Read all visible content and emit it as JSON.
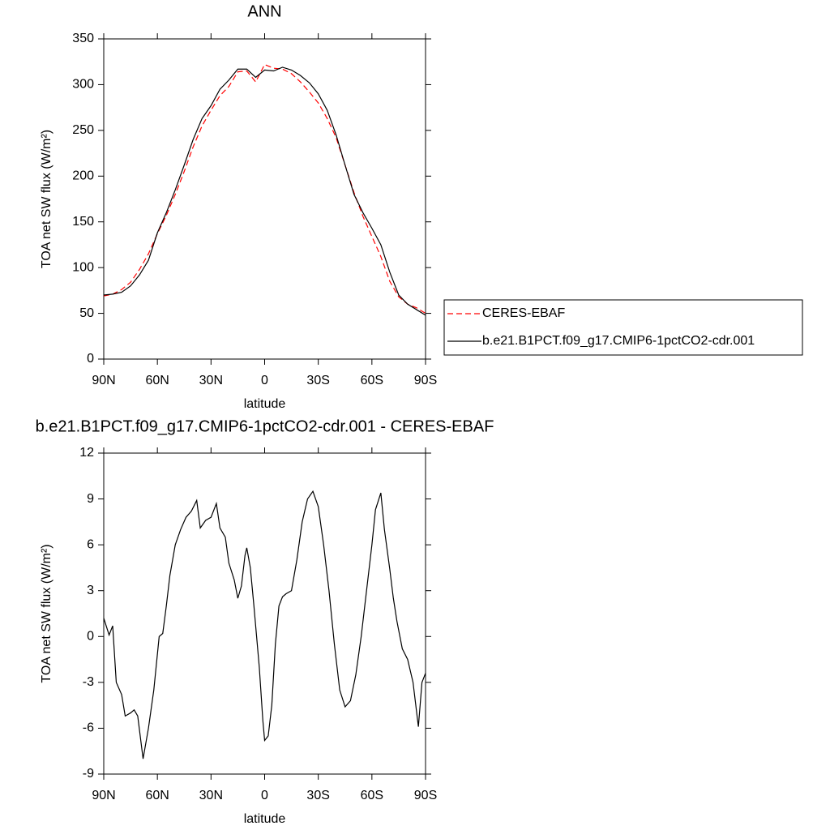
{
  "chart_data": [
    {
      "type": "line",
      "title": "ANN",
      "x": [
        90,
        85,
        80,
        75,
        70,
        65,
        60,
        55,
        50,
        45,
        40,
        35,
        30,
        25,
        20,
        15,
        10,
        5,
        0,
        -5,
        -10,
        -15,
        -20,
        -25,
        -30,
        -35,
        -40,
        -45,
        -50,
        -55,
        -60,
        -65,
        -70,
        -75,
        -80,
        -85,
        -90
      ],
      "series": [
        {
          "name": "CERES-EBAF",
          "color": "#ff0000",
          "dashed": true,
          "values": [
            69,
            71,
            76,
            84,
            98,
            115,
            137,
            157,
            180,
            205,
            232,
            255,
            272,
            288,
            298,
            314,
            315,
            303,
            322,
            318,
            317,
            312,
            303,
            292,
            280,
            263,
            242,
            212,
            182,
            156,
            134,
            112,
            85,
            68,
            60,
            56,
            50
          ]
        },
        {
          "name": "b.e21.B1PCT.f09_g17.CMIP6-1pctCO2-cdr.001",
          "color": "#000000",
          "dashed": false,
          "values": [
            70,
            71,
            73,
            80,
            92,
            108,
            138,
            160,
            185,
            212,
            240,
            263,
            277,
            295,
            305,
            317,
            317,
            308,
            316,
            315,
            319,
            316,
            310,
            302,
            290,
            272,
            245,
            212,
            180,
            160,
            143,
            125,
            95,
            70,
            60,
            54,
            48
          ]
        }
      ],
      "xlim": [
        90,
        -90
      ],
      "xticks": [
        {
          "value": 90,
          "label": "90N"
        },
        {
          "value": 60,
          "label": "60N"
        },
        {
          "value": 30,
          "label": "30N"
        },
        0,
        {
          "value": -30,
          "label": "30S"
        },
        {
          "value": -60,
          "label": "60S"
        },
        {
          "value": -90,
          "label": "90S"
        }
      ],
      "ylim": [
        0,
        350
      ],
      "yticks": [
        0,
        50,
        100,
        150,
        200,
        250,
        300,
        350
      ],
      "x_label": "latitude",
      "y_label": "TOA net SW flux (W/m²)",
      "legend": "right"
    },
    {
      "type": "line",
      "title": "b.e21.B1PCT.f09_g17.CMIP6-1pctCO2-cdr.001 - CERES-EBAF",
      "x": [
        90,
        87,
        85,
        83,
        80,
        78,
        75,
        73,
        71,
        68,
        65,
        62,
        59,
        57,
        55,
        53,
        50,
        47,
        44,
        41,
        38,
        36,
        33,
        30,
        27,
        25,
        22,
        20,
        17,
        15,
        13,
        11,
        10,
        8,
        6,
        3,
        1,
        0,
        -2,
        -4,
        -6,
        -8,
        -10,
        -12,
        -15,
        -18,
        -21,
        -24,
        -27,
        -30,
        -33,
        -36,
        -39,
        -42,
        -45,
        -48,
        -51,
        -54,
        -57,
        -60,
        -62,
        -65,
        -67,
        -70,
        -72,
        -74,
        -77,
        -80,
        -83,
        -86,
        -88,
        -90
      ],
      "series": [
        {
          "color": "#000000",
          "dashed": false,
          "values": [
            1.2,
            0.1,
            0.7,
            -3,
            -3.8,
            -5.2,
            -5,
            -4.8,
            -5.2,
            -8,
            -6,
            -3.5,
            0,
            0.2,
            2,
            4,
            6,
            7,
            7.8,
            8.2,
            8.9,
            7.1,
            7.6,
            7.8,
            8.7,
            7.1,
            6.5,
            4.8,
            3.7,
            2.5,
            3.3,
            5.3,
            5.8,
            4.5,
            2,
            -2,
            -5.5,
            -6.8,
            -6.5,
            -4.5,
            -0.5,
            2,
            2.6,
            2.8,
            3,
            5,
            7.5,
            9,
            9.5,
            8.5,
            6,
            3,
            -0.5,
            -3.5,
            -4.6,
            -4.2,
            -2.5,
            0,
            3,
            6,
            8.3,
            9.4,
            7,
            4.4,
            2.5,
            1,
            -0.8,
            -1.5,
            -3,
            -5.9,
            -3,
            -2.4
          ]
        }
      ],
      "xlim": [
        90,
        -90
      ],
      "xticks": [
        {
          "value": 90,
          "label": "90N"
        },
        {
          "value": 60,
          "label": "60N"
        },
        {
          "value": 30,
          "label": "30N"
        },
        0,
        {
          "value": -30,
          "label": "30S"
        },
        {
          "value": -60,
          "label": "60S"
        },
        {
          "value": -90,
          "label": "90S"
        }
      ],
      "ylim": [
        -9,
        12
      ],
      "yticks": [
        -9,
        -6,
        -3,
        0,
        3,
        6,
        9,
        12
      ],
      "x_label": "latitude",
      "y_label": "TOA net SW flux (W/m²)"
    }
  ]
}
